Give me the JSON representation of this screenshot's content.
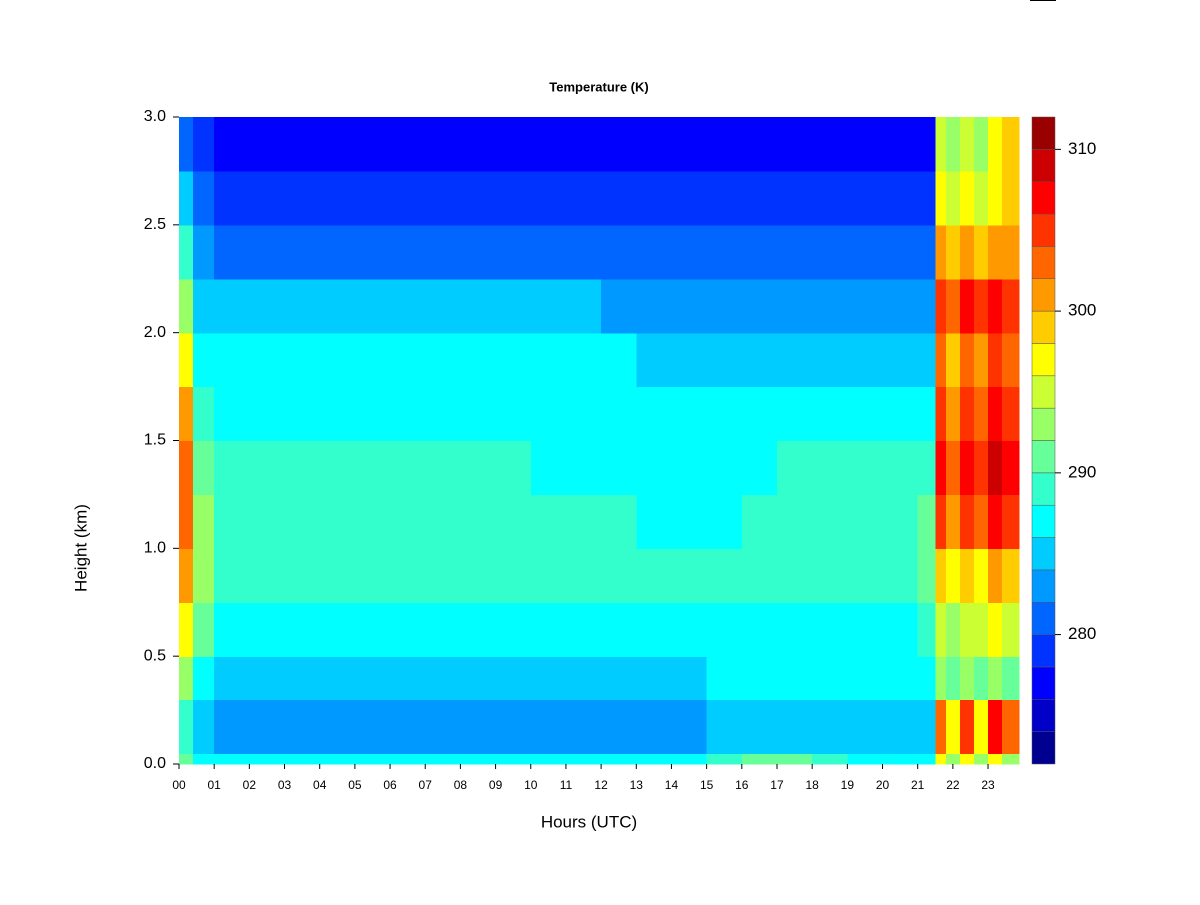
{
  "chart_data": {
    "type": "heatmap",
    "title": "Temperature (K)",
    "xlabel": "Hours (UTC)",
    "ylabel": "Height (km)",
    "xlim": [
      0,
      23.88
    ],
    "ylim": [
      0,
      3
    ],
    "xticks": [
      {
        "value": 0,
        "label": "00"
      },
      {
        "value": 1,
        "label": "01"
      },
      {
        "value": 2,
        "label": "02"
      },
      {
        "value": 3,
        "label": "03"
      },
      {
        "value": 4,
        "label": "04"
      },
      {
        "value": 5,
        "label": "05"
      },
      {
        "value": 6,
        "label": "06"
      },
      {
        "value": 7,
        "label": "07"
      },
      {
        "value": 8,
        "label": "08"
      },
      {
        "value": 9,
        "label": "09"
      },
      10,
      11,
      12,
      13,
      14,
      15,
      16,
      17,
      18,
      19,
      20,
      21,
      22,
      23
    ],
    "yticks": [
      {
        "value": 0,
        "label": "0.0"
      },
      0.5,
      {
        "value": 1,
        "label": "1.0"
      },
      1.5,
      {
        "value": 2,
        "label": "2.0"
      },
      2.5,
      {
        "value": 3,
        "label": "3.0"
      }
    ],
    "xbins": [
      0,
      0.4,
      1,
      2,
      3,
      4,
      5,
      6,
      7,
      8,
      9,
      10,
      11,
      12,
      13,
      14,
      15,
      16,
      17,
      18,
      19,
      20,
      21,
      21.5,
      21.8,
      22.2,
      22.6,
      23,
      23.4,
      23.88
    ],
    "ybins": [
      0,
      0.05,
      0.3,
      0.5,
      0.75,
      1.0,
      1.25,
      1.5,
      1.75,
      2.0,
      2.25,
      2.5,
      2.75,
      3.0
    ],
    "z": [
      [
        291,
        287,
        287,
        287,
        287,
        287,
        287,
        287,
        287,
        287,
        287,
        287,
        287,
        287,
        287,
        287,
        289,
        291,
        291,
        289,
        287,
        287,
        287,
        297,
        293,
        297,
        293,
        297,
        293
      ],
      [
        289,
        285,
        283,
        283,
        283,
        283,
        283,
        283,
        283,
        283,
        283,
        283,
        283,
        283,
        283,
        283,
        285,
        285,
        285,
        285,
        285,
        285,
        285,
        303,
        297,
        305,
        297,
        307,
        303
      ],
      [
        293,
        287,
        285,
        285,
        285,
        285,
        285,
        285,
        285,
        285,
        285,
        285,
        285,
        285,
        285,
        285,
        287,
        287,
        287,
        287,
        287,
        287,
        287,
        293,
        291,
        293,
        291,
        293,
        291
      ],
      [
        297,
        291,
        287,
        287,
        287,
        287,
        287,
        287,
        287,
        287,
        287,
        287,
        287,
        287,
        287,
        287,
        287,
        287,
        287,
        287,
        287,
        287,
        289,
        295,
        293,
        295,
        295,
        297,
        295
      ],
      [
        301,
        293,
        289,
        289,
        289,
        289,
        289,
        289,
        289,
        289,
        289,
        289,
        289,
        289,
        289,
        289,
        289,
        289,
        289,
        289,
        289,
        289,
        291,
        299,
        297,
        299,
        297,
        301,
        299
      ],
      [
        303,
        293,
        289,
        289,
        289,
        289,
        289,
        289,
        289,
        289,
        289,
        289,
        289,
        289,
        287,
        287,
        287,
        289,
        289,
        289,
        289,
        289,
        291,
        305,
        301,
        305,
        303,
        307,
        305
      ],
      [
        303,
        291,
        289,
        289,
        289,
        289,
        289,
        289,
        289,
        289,
        289,
        287,
        287,
        287,
        287,
        287,
        287,
        287,
        289,
        289,
        289,
        289,
        289,
        307,
        303,
        307,
        305,
        309,
        307
      ],
      [
        301,
        289,
        287,
        287,
        287,
        287,
        287,
        287,
        287,
        287,
        287,
        287,
        287,
        287,
        287,
        287,
        287,
        287,
        287,
        287,
        287,
        287,
        287,
        305,
        301,
        305,
        303,
        307,
        305
      ],
      [
        297,
        287,
        287,
        287,
        287,
        287,
        287,
        287,
        287,
        287,
        287,
        287,
        287,
        287,
        285,
        285,
        285,
        285,
        285,
        285,
        285,
        285,
        285,
        303,
        299,
        303,
        301,
        305,
        303
      ],
      [
        293,
        285,
        285,
        285,
        285,
        285,
        285,
        285,
        285,
        285,
        285,
        285,
        285,
        283,
        283,
        283,
        283,
        283,
        283,
        283,
        283,
        283,
        283,
        305,
        303,
        307,
        305,
        307,
        305
      ],
      [
        289,
        283,
        281,
        281,
        281,
        281,
        281,
        281,
        281,
        281,
        281,
        281,
        281,
        281,
        281,
        281,
        281,
        281,
        281,
        281,
        281,
        281,
        281,
        301,
        299,
        301,
        299,
        301,
        301
      ],
      [
        285,
        281,
        279,
        279,
        279,
        279,
        279,
        279,
        279,
        279,
        279,
        279,
        279,
        279,
        279,
        279,
        279,
        279,
        279,
        279,
        279,
        279,
        279,
        297,
        295,
        297,
        295,
        297,
        299
      ],
      [
        281,
        279,
        277,
        277,
        277,
        277,
        277,
        277,
        277,
        277,
        277,
        277,
        277,
        277,
        277,
        277,
        277,
        277,
        277,
        277,
        277,
        277,
        277,
        295,
        293,
        295,
        293,
        297,
        299
      ]
    ],
    "colorbar": {
      "levels": [
        272,
        274,
        276,
        278,
        280,
        282,
        284,
        286,
        288,
        290,
        292,
        294,
        296,
        298,
        300,
        302,
        304,
        306,
        308,
        310,
        312
      ],
      "colors": [
        "#000090",
        "#0000c8",
        "#0000ff",
        "#0033ff",
        "#0066ff",
        "#0099ff",
        "#00ccff",
        "#00ffff",
        "#33ffcc",
        "#66ff99",
        "#99ff66",
        "#ccff33",
        "#ffff00",
        "#ffcc00",
        "#ff9900",
        "#ff6600",
        "#ff3300",
        "#ff0000",
        "#cc0000",
        "#990000"
      ],
      "ticks": [
        280,
        290,
        300,
        310
      ]
    }
  }
}
